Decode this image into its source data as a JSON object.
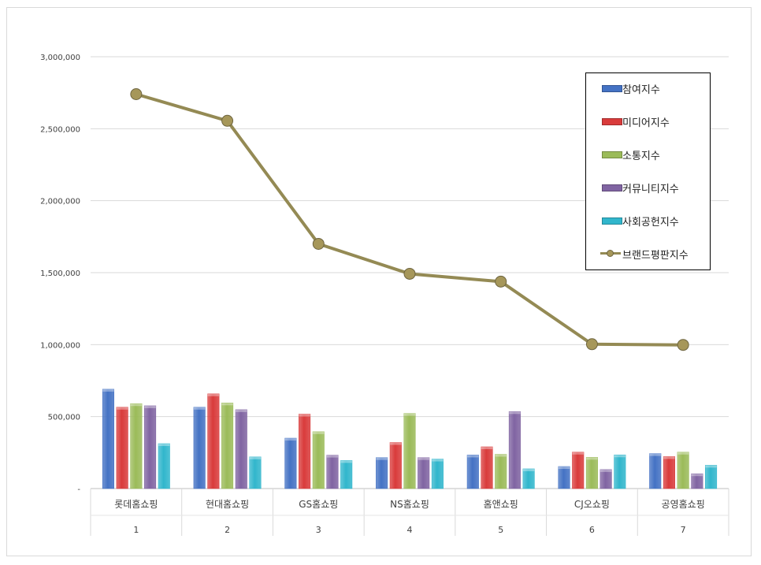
{
  "chart_data": {
    "type": "bar",
    "categories": [
      "롯데홈쇼핑",
      "현대홈쇼핑",
      "GS홈쇼핑",
      "NS홈쇼핑",
      "홈앤쇼핑",
      "CJ오쇼핑",
      "공영홈쇼핑"
    ],
    "ranks": [
      "1",
      "2",
      "3",
      "4",
      "5",
      "6",
      "7"
    ],
    "y_ticks": [
      "-",
      "500,000",
      "1,000,000",
      "1,500,000",
      "2,000,000",
      "2,500,000",
      "3,000,000"
    ],
    "ylim": [
      0,
      3000000
    ],
    "grid": true,
    "legend_position": "top-right",
    "series": [
      {
        "name": "참여지수",
        "kind": "bar",
        "color": "#4472c4",
        "values": [
          690000,
          565000,
          350000,
          215000,
          233000,
          153000,
          243000
        ]
      },
      {
        "name": "미디어지수",
        "kind": "bar",
        "color": "#d93b3b",
        "values": [
          565000,
          658000,
          517000,
          320000,
          290000,
          253000,
          222000
        ]
      },
      {
        "name": "소통지수",
        "kind": "bar",
        "color": "#9bbb59",
        "values": [
          590000,
          595000,
          395000,
          522000,
          238000,
          217000,
          253000
        ]
      },
      {
        "name": "커뮤니티지수",
        "kind": "bar",
        "color": "#8064a2",
        "values": [
          575000,
          548000,
          232000,
          215000,
          535000,
          132000,
          103000
        ]
      },
      {
        "name": "사회공헌지수",
        "kind": "bar",
        "color": "#31b6cc",
        "values": [
          312000,
          220000,
          195000,
          205000,
          137000,
          234000,
          162000
        ]
      },
      {
        "name": "브랜드평판지수",
        "kind": "line",
        "color": "#948a54",
        "marker_color": "#a6975a",
        "values": [
          2740000,
          2555000,
          1700000,
          1492000,
          1438000,
          1003000,
          998000
        ]
      }
    ]
  }
}
